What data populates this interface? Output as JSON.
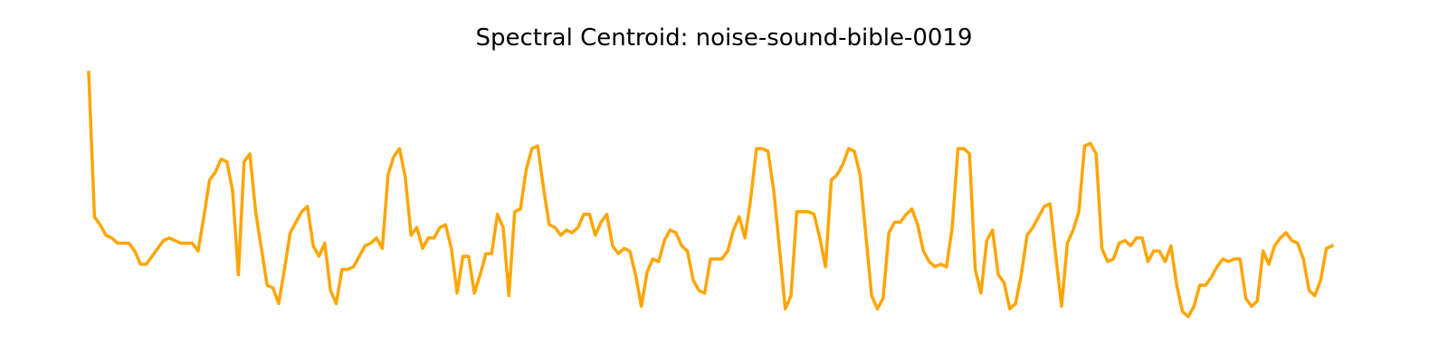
{
  "chart_data": {
    "type": "line",
    "title": "Spectral Centroid: noise-sound-bible-0019",
    "xlabel": "",
    "ylabel": "",
    "axes_visible": false,
    "grid": false,
    "legend": "none",
    "series": [
      {
        "color": "#FFA500",
        "values": [
          1.0,
          0.45,
          0.42,
          0.38,
          0.37,
          0.35,
          0.35,
          0.35,
          0.32,
          0.27,
          0.27,
          0.3,
          0.33,
          0.36,
          0.37,
          0.36,
          0.35,
          0.35,
          0.35,
          0.32,
          0.45,
          0.59,
          0.62,
          0.67,
          0.66,
          0.55,
          0.23,
          0.66,
          0.69,
          0.47,
          0.33,
          0.19,
          0.18,
          0.12,
          0.25,
          0.39,
          0.43,
          0.47,
          0.49,
          0.34,
          0.3,
          0.35,
          0.17,
          0.12,
          0.25,
          0.25,
          0.26,
          0.3,
          0.34,
          0.35,
          0.37,
          0.33,
          0.61,
          0.68,
          0.71,
          0.6,
          0.38,
          0.41,
          0.33,
          0.37,
          0.37,
          0.41,
          0.42,
          0.33,
          0.16,
          0.3,
          0.3,
          0.16,
          0.23,
          0.31,
          0.31,
          0.46,
          0.41,
          0.15,
          0.47,
          0.48,
          0.63,
          0.71,
          0.72,
          0.56,
          0.42,
          0.41,
          0.38,
          0.4,
          0.39,
          0.41,
          0.46,
          0.46,
          0.38,
          0.43,
          0.46,
          0.34,
          0.31,
          0.33,
          0.32,
          0.23,
          0.11,
          0.24,
          0.29,
          0.28,
          0.36,
          0.4,
          0.39,
          0.34,
          0.32,
          0.21,
          0.17,
          0.16,
          0.29,
          0.29,
          0.29,
          0.32,
          0.4,
          0.45,
          0.37,
          0.52,
          0.71,
          0.71,
          0.7,
          0.55,
          0.33,
          0.1,
          0.15,
          0.47,
          0.47,
          0.47,
          0.46,
          0.37,
          0.26,
          0.59,
          0.61,
          0.65,
          0.71,
          0.7,
          0.61,
          0.38,
          0.15,
          0.1,
          0.14,
          0.39,
          0.43,
          0.43,
          0.46,
          0.48,
          0.42,
          0.32,
          0.28,
          0.26,
          0.27,
          0.26,
          0.41,
          0.71,
          0.71,
          0.69,
          0.25,
          0.16,
          0.36,
          0.4,
          0.23,
          0.2,
          0.1,
          0.12,
          0.23,
          0.38,
          0.41,
          0.45,
          0.49,
          0.5,
          0.3,
          0.11,
          0.35,
          0.4,
          0.47,
          0.72,
          0.73,
          0.69,
          0.33,
          0.28,
          0.29,
          0.35,
          0.36,
          0.34,
          0.37,
          0.37,
          0.28,
          0.32,
          0.32,
          0.28,
          0.34,
          0.19,
          0.09,
          0.07,
          0.11,
          0.19,
          0.19,
          0.22,
          0.26,
          0.29,
          0.28,
          0.29,
          0.29,
          0.14,
          0.11,
          0.13,
          0.32,
          0.27,
          0.34,
          0.37,
          0.39,
          0.36,
          0.35,
          0.29,
          0.17,
          0.15,
          0.21,
          0.33,
          0.34
        ]
      }
    ]
  }
}
